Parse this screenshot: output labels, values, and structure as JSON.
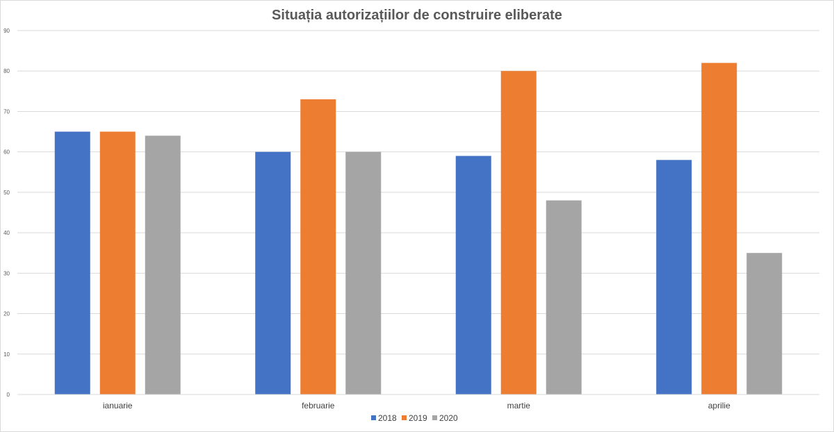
{
  "chart_data": {
    "type": "bar",
    "title": "Situația autorizațiilor de construire eliberate",
    "xlabel": "",
    "ylabel": "",
    "categories": [
      "ianuarie",
      "februarie",
      "martie",
      "aprilie"
    ],
    "series": [
      {
        "name": "2018",
        "color": "#4472C4",
        "values": [
          65,
          60,
          59,
          58
        ]
      },
      {
        "name": "2019",
        "color": "#ED7D31",
        "values": [
          65,
          73,
          80,
          82
        ]
      },
      {
        "name": "2020",
        "color": "#A5A5A5",
        "values": [
          64,
          60,
          48,
          35
        ]
      }
    ],
    "ylim": [
      0,
      90
    ],
    "yticks": [
      0,
      10,
      20,
      30,
      40,
      50,
      60,
      70,
      80,
      90
    ],
    "grid": true,
    "legend_position": "bottom"
  }
}
